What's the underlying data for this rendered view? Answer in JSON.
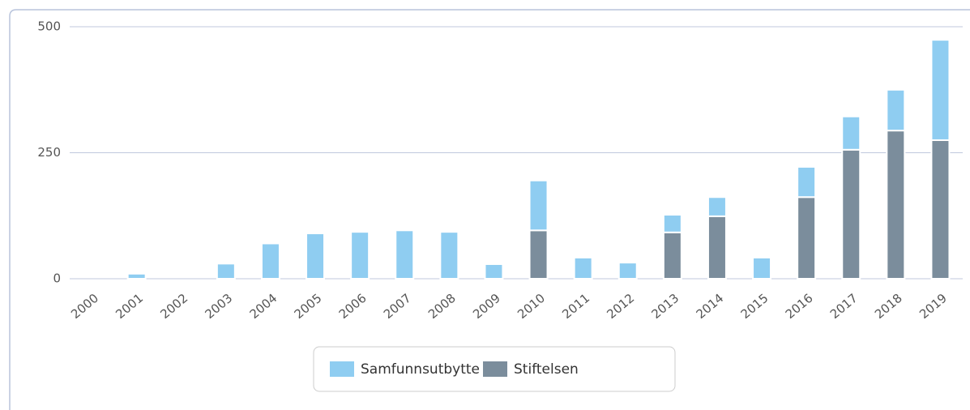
{
  "chart_data": {
    "type": "stacked_bar",
    "categories": [
      "2000",
      "2001",
      "2002",
      "2003",
      "2004",
      "2005",
      "2006",
      "2007",
      "2008",
      "2009",
      "2010",
      "2011",
      "2012",
      "2013",
      "2014",
      "2015",
      "2016",
      "2017",
      "2018",
      "2019"
    ],
    "series": [
      {
        "name": "Stiftelsen",
        "color": "#7b8d9c",
        "values": [
          0,
          0,
          0,
          0,
          0,
          0,
          0,
          0,
          0,
          0,
          96,
          0,
          0,
          92,
          124,
          0,
          162,
          256,
          294,
          275
        ]
      },
      {
        "name": "Samfunnsutbytte",
        "color": "#8fcdf1",
        "values": [
          0,
          10,
          0,
          30,
          70,
          90,
          93,
          96,
          93,
          29,
          99,
          42,
          32,
          35,
          38,
          42,
          60,
          66,
          81,
          199
        ]
      }
    ],
    "ylim": [
      0,
      500
    ],
    "yticks": [
      0,
      250,
      500
    ],
    "grid": true
  }
}
